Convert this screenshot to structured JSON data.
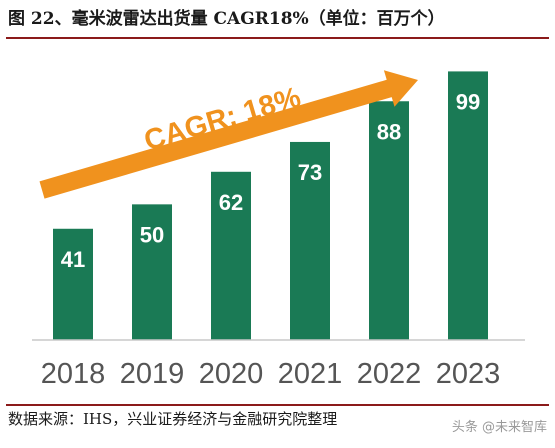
{
  "header": {
    "title": "图 22、毫米波雷达出货量 CAGR18%（单位：百万个）"
  },
  "chart_data": {
    "type": "bar",
    "categories": [
      "2018",
      "2019",
      "2020",
      "2021",
      "2022",
      "2023"
    ],
    "values": [
      41,
      50,
      62,
      73,
      88,
      99
    ],
    "annotation": "CAGR: 18%",
    "bar_color": "#1a7a55",
    "arrow_color": "#f0921e",
    "ylim": [
      0,
      115
    ],
    "grid": false,
    "legend": "none"
  },
  "footer": {
    "source": "数据来源：IHS，兴业证券经济与金融研究院整理",
    "watermark": "头条 @未来智库"
  }
}
